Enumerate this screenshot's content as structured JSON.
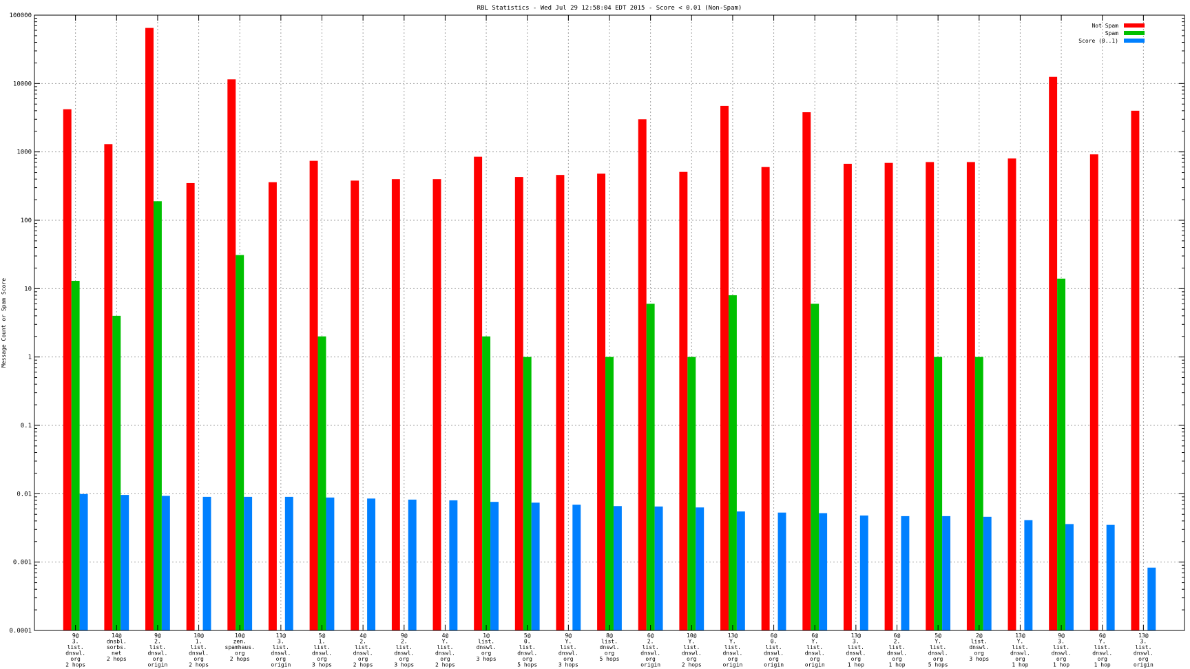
{
  "chart_data": {
    "type": "bar",
    "title": "RBL Statistics - Wed Jul 29 12:58:04 EDT 2015 - Score < 0.01 (Non-Spam)",
    "xlabel": "",
    "ylabel": "Message Count or Spam Score",
    "yscale": "log",
    "ylim": [
      0.0001,
      100000
    ],
    "y_ticks": [
      "0.0001",
      "0.001",
      "0.01",
      "0.1",
      "1",
      "10",
      "100",
      "1000",
      "10000",
      "100000"
    ],
    "grid": true,
    "legend_position": "top-right",
    "categories": [
      [
        "9@",
        "3.",
        "list.",
        "dnswl.",
        "org",
        "2 hops"
      ],
      [
        "14@",
        "dnsbl.",
        "sorbs.",
        "net",
        "2 hops"
      ],
      [
        "9@",
        "2.",
        "list.",
        "dnswl.",
        "org",
        "origin"
      ],
      [
        "10@",
        "1.",
        "list.",
        "dnswl.",
        "org",
        "2 hops"
      ],
      [
        "10@",
        "zen.",
        "spamhaus.",
        "org",
        "2 hops"
      ],
      [
        "11@",
        "3.",
        "list.",
        "dnswl.",
        "org",
        "origin"
      ],
      [
        "5@",
        "1.",
        "list.",
        "dnswl.",
        "org",
        "3 hops"
      ],
      [
        "4@",
        "2.",
        "list.",
        "dnswl.",
        "org",
        "2 hops"
      ],
      [
        "9@",
        "2.",
        "list.",
        "dnswl.",
        "org",
        "3 hops"
      ],
      [
        "4@",
        "Y.",
        "list.",
        "dnswl.",
        "org",
        "2 hops"
      ],
      [
        "1@",
        "list.",
        "dnswl.",
        "org",
        "3 hops"
      ],
      [
        "5@",
        "0.",
        "list.",
        "dnswl.",
        "org",
        "5 hops"
      ],
      [
        "9@",
        "Y.",
        "list.",
        "dnswl.",
        "org",
        "3 hops"
      ],
      [
        "8@",
        "list.",
        "dnswl.",
        "org",
        "5 hops"
      ],
      [
        "6@",
        "2.",
        "list.",
        "dnswl.",
        "org",
        "origin"
      ],
      [
        "10@",
        "Y.",
        "list.",
        "dnswl.",
        "org",
        "2 hops"
      ],
      [
        "13@",
        "Y.",
        "list.",
        "dnswl.",
        "org",
        "origin"
      ],
      [
        "6@",
        "0.",
        "list.",
        "dnswl.",
        "org",
        "origin"
      ],
      [
        "6@",
        "Y.",
        "list.",
        "dnswl.",
        "org",
        "origin"
      ],
      [
        "13@",
        "3.",
        "list.",
        "dnswl.",
        "org",
        "1 hop"
      ],
      [
        "6@",
        "2.",
        "list.",
        "dnswl.",
        "org",
        "1 hop"
      ],
      [
        "5@",
        "Y.",
        "list.",
        "dnswl.",
        "org",
        "5 hops"
      ],
      [
        "2@",
        "list.",
        "dnswl.",
        "org",
        "3 hops"
      ],
      [
        "13@",
        "Y.",
        "list.",
        "dnswl.",
        "org",
        "1 hop"
      ],
      [
        "9@",
        "3.",
        "list.",
        "dnswl.",
        "org",
        "1 hop"
      ],
      [
        "6@",
        "Y.",
        "list.",
        "dnswl.",
        "org",
        "1 hop"
      ],
      [
        "13@",
        "3.",
        "list.",
        "dnswl.",
        "org",
        "origin"
      ]
    ],
    "series": [
      {
        "name": "Not Spam",
        "color": "#ff0000",
        "values": [
          4200,
          1300,
          65000,
          350,
          11500,
          360,
          740,
          380,
          400,
          400,
          850,
          430,
          460,
          480,
          3000,
          510,
          4700,
          600,
          3800,
          670,
          690,
          710,
          710,
          800,
          12500,
          920,
          4000
        ]
      },
      {
        "name": "Spam",
        "color": "#00c000",
        "values": [
          13,
          4,
          190,
          null,
          31,
          null,
          2,
          null,
          null,
          null,
          2,
          1,
          null,
          1,
          6,
          1,
          8,
          null,
          6,
          null,
          null,
          1,
          1,
          null,
          14,
          null,
          null
        ]
      },
      {
        "name": "Score (0..1)",
        "color": "#0080ff",
        "values": [
          0.0099,
          0.0096,
          0.0093,
          0.009,
          0.009,
          0.009,
          0.0088,
          0.0085,
          0.0082,
          0.008,
          0.0076,
          0.0074,
          0.0069,
          0.0066,
          0.0065,
          0.0063,
          0.0055,
          0.0053,
          0.0052,
          0.0048,
          0.0047,
          0.0047,
          0.0046,
          0.0041,
          0.0036,
          0.0035,
          0.00083
        ]
      }
    ]
  }
}
